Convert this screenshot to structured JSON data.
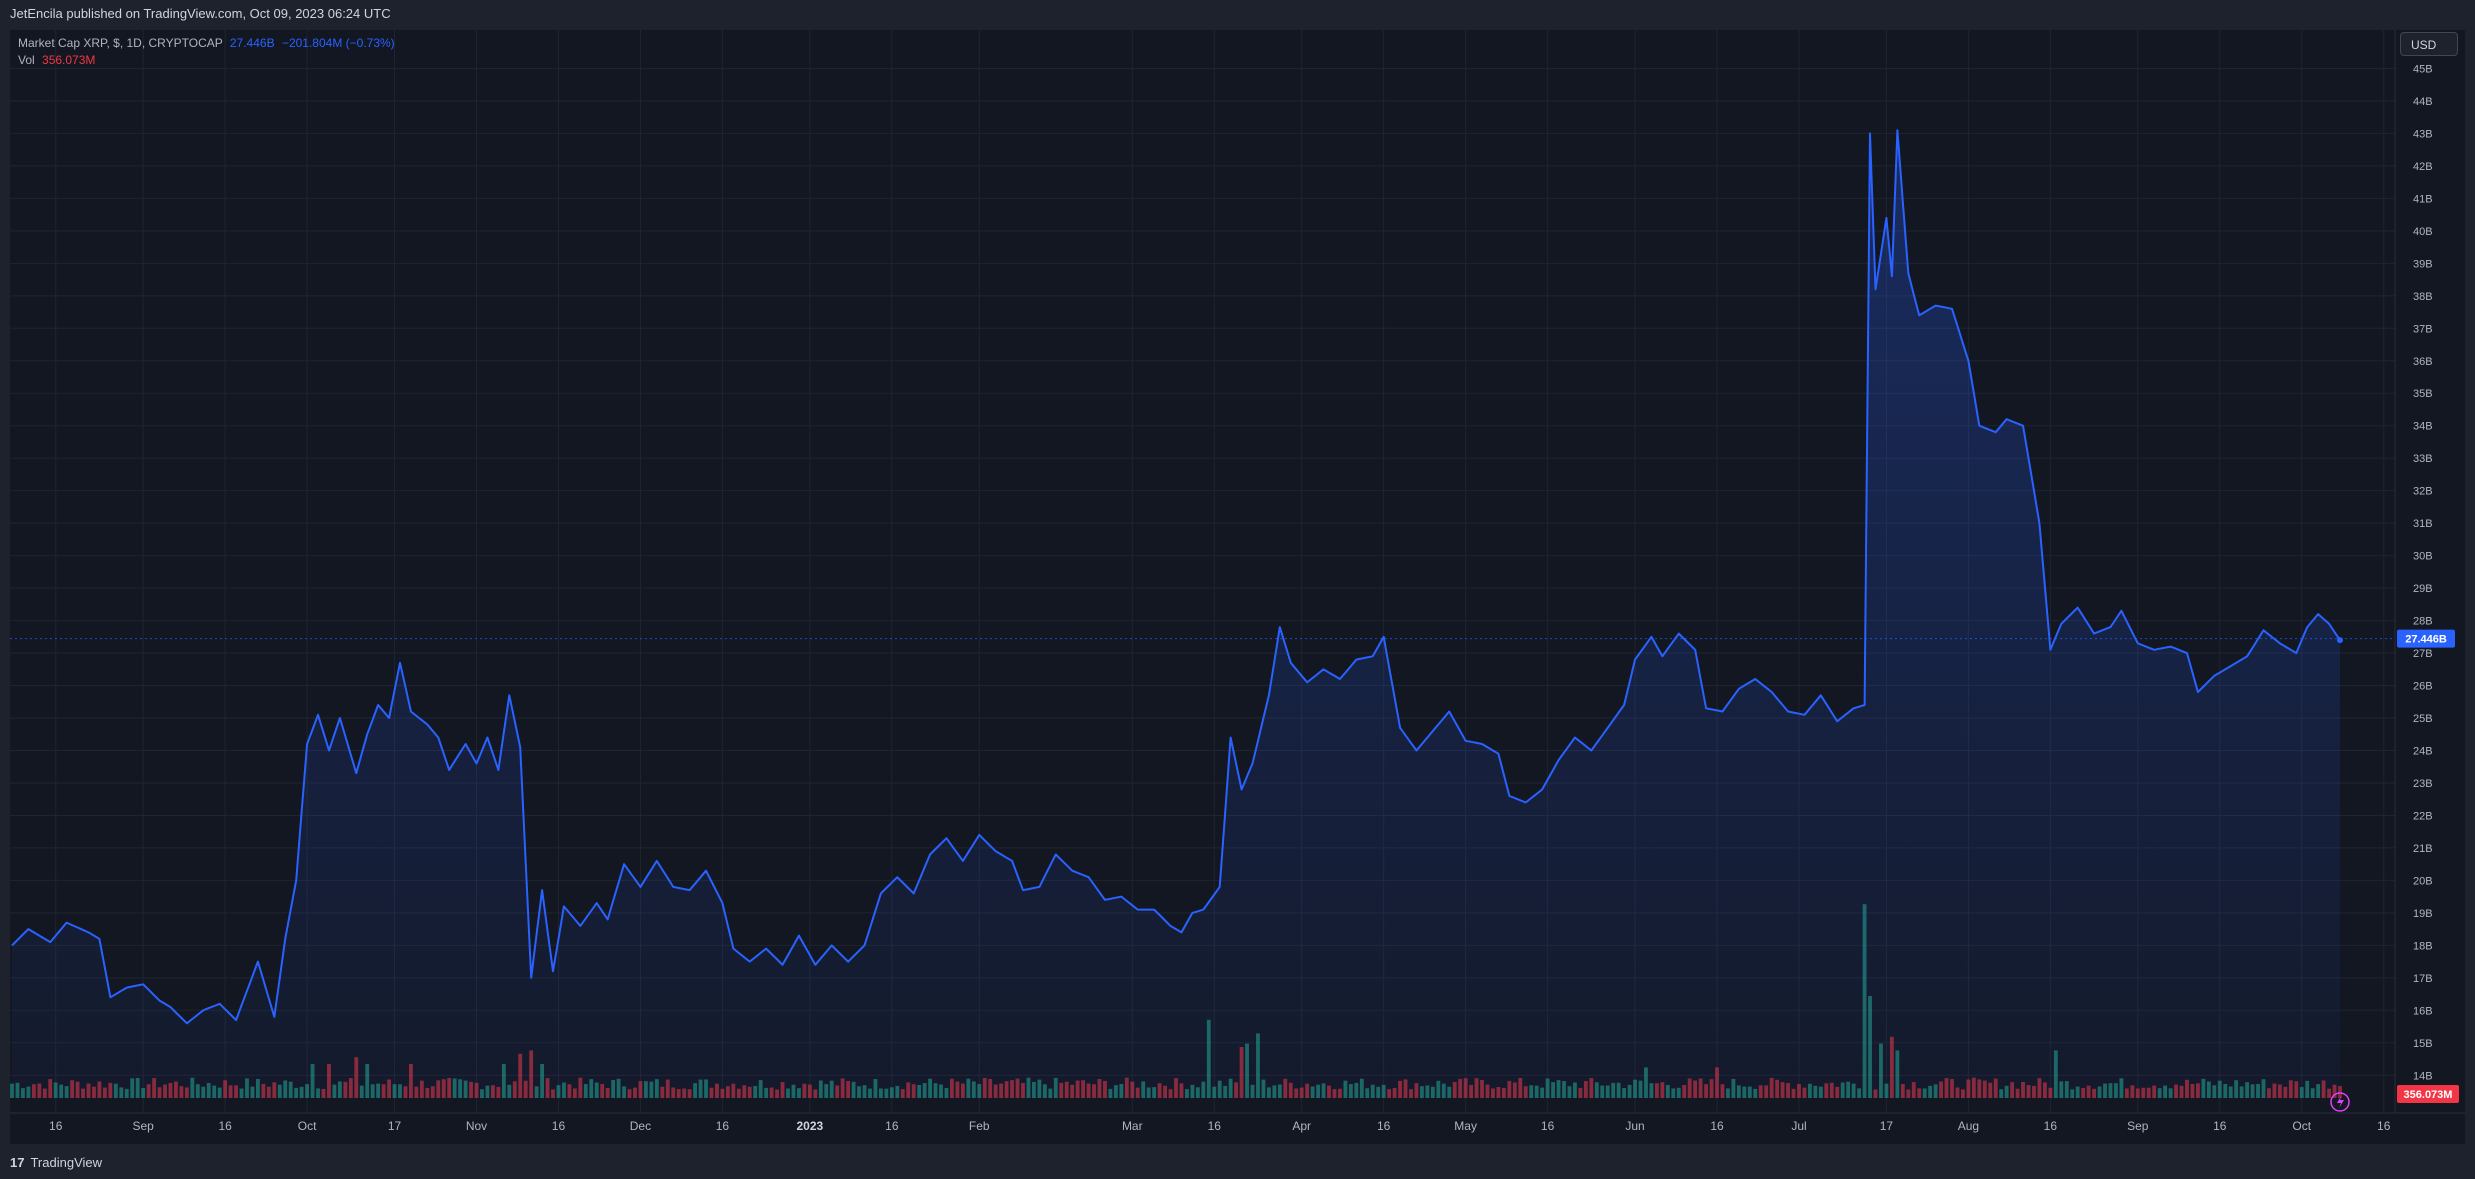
{
  "header": {
    "published": "JetEncila published on TradingView.com, Oct 09, 2023 06:24 UTC"
  },
  "legend": {
    "symbol": "Market Cap XRP, $, 1D, CRYPTOCAP",
    "last": "27.446B",
    "change": "−201.804M (−0.73%)",
    "vol_label": "Vol",
    "vol_value": "356.073M"
  },
  "currency_button": "USD",
  "footer": {
    "brand": "TradingView",
    "logo_glyph": "17"
  },
  "colors": {
    "line": "#2962ff",
    "volume_up": "#22ab94",
    "volume_down": "#f23645",
    "background": "#131722",
    "grid": "#1f2431"
  },
  "chart_data": {
    "type": "area",
    "title": "Market Cap XRP",
    "y_unit": "USD (billions)",
    "ylim": [
      13.3,
      46.0
    ],
    "y_ticks": [
      "14B",
      "15B",
      "16B",
      "17B",
      "18B",
      "19B",
      "20B",
      "21B",
      "22B",
      "23B",
      "24B",
      "25B",
      "26B",
      "27B",
      "28B",
      "29B",
      "30B",
      "31B",
      "32B",
      "33B",
      "34B",
      "35B",
      "36B",
      "37B",
      "38B",
      "39B",
      "40B",
      "41B",
      "42B",
      "43B",
      "44B",
      "45B"
    ],
    "x_ticks": [
      "16",
      "Sep",
      "16",
      "Oct",
      "17",
      "Nov",
      "16",
      "Dec",
      "16",
      "2023",
      "16",
      "Feb",
      "Mar",
      "16",
      "Apr",
      "16",
      "May",
      "16",
      "Jun",
      "16",
      "Jul",
      "17",
      "Aug",
      "16",
      "Sep",
      "16",
      "Oct",
      "16"
    ],
    "grid": true,
    "last_value_label": "27.446B",
    "volume_last_label": "356.073M",
    "price_keypoints": [
      [
        "2022-08-08",
        18.0
      ],
      [
        "2022-08-11",
        18.5
      ],
      [
        "2022-08-15",
        18.1
      ],
      [
        "2022-08-18",
        18.7
      ],
      [
        "2022-08-22",
        18.4
      ],
      [
        "2022-08-24",
        18.2
      ],
      [
        "2022-08-26",
        16.4
      ],
      [
        "2022-08-29",
        16.7
      ],
      [
        "2022-09-01",
        16.8
      ],
      [
        "2022-09-04",
        16.3
      ],
      [
        "2022-09-06",
        16.1
      ],
      [
        "2022-09-09",
        15.6
      ],
      [
        "2022-09-12",
        16.0
      ],
      [
        "2022-09-15",
        16.2
      ],
      [
        "2022-09-18",
        15.7
      ],
      [
        "2022-09-20",
        16.6
      ],
      [
        "2022-09-22",
        17.5
      ],
      [
        "2022-09-25",
        15.8
      ],
      [
        "2022-09-27",
        18.2
      ],
      [
        "2022-09-29",
        20.0
      ],
      [
        "2022-10-01",
        24.2
      ],
      [
        "2022-10-03",
        25.1
      ],
      [
        "2022-10-05",
        24.0
      ],
      [
        "2022-10-07",
        25.0
      ],
      [
        "2022-10-10",
        23.3
      ],
      [
        "2022-10-12",
        24.5
      ],
      [
        "2022-10-14",
        25.4
      ],
      [
        "2022-10-16",
        25.0
      ],
      [
        "2022-10-18",
        26.7
      ],
      [
        "2022-10-20",
        25.2
      ],
      [
        "2022-10-23",
        24.8
      ],
      [
        "2022-10-25",
        24.4
      ],
      [
        "2022-10-27",
        23.4
      ],
      [
        "2022-10-30",
        24.2
      ],
      [
        "2022-11-01",
        23.6
      ],
      [
        "2022-11-03",
        24.4
      ],
      [
        "2022-11-05",
        23.4
      ],
      [
        "2022-11-07",
        25.7
      ],
      [
        "2022-11-09",
        24.1
      ],
      [
        "2022-11-11",
        17.0
      ],
      [
        "2022-11-13",
        19.7
      ],
      [
        "2022-11-15",
        17.2
      ],
      [
        "2022-11-17",
        19.2
      ],
      [
        "2022-11-20",
        18.6
      ],
      [
        "2022-11-23",
        19.3
      ],
      [
        "2022-11-25",
        18.8
      ],
      [
        "2022-11-28",
        20.5
      ],
      [
        "2022-12-01",
        19.8
      ],
      [
        "2022-12-04",
        20.6
      ],
      [
        "2022-12-07",
        19.8
      ],
      [
        "2022-12-10",
        19.7
      ],
      [
        "2022-12-13",
        20.3
      ],
      [
        "2022-12-16",
        19.3
      ],
      [
        "2022-12-18",
        17.9
      ],
      [
        "2022-12-21",
        17.5
      ],
      [
        "2022-12-24",
        17.9
      ],
      [
        "2022-12-27",
        17.4
      ],
      [
        "2022-12-30",
        18.3
      ],
      [
        "2023-01-02",
        17.4
      ],
      [
        "2023-01-05",
        18.0
      ],
      [
        "2023-01-08",
        17.5
      ],
      [
        "2023-01-11",
        18.0
      ],
      [
        "2023-01-14",
        19.6
      ],
      [
        "2023-01-17",
        20.1
      ],
      [
        "2023-01-20",
        19.6
      ],
      [
        "2023-01-23",
        20.8
      ],
      [
        "2023-01-26",
        21.3
      ],
      [
        "2023-01-29",
        20.6
      ],
      [
        "2023-02-01",
        21.4
      ],
      [
        "2023-02-04",
        20.9
      ],
      [
        "2023-02-07",
        20.6
      ],
      [
        "2023-02-09",
        19.7
      ],
      [
        "2023-02-12",
        19.8
      ],
      [
        "2023-02-15",
        20.8
      ],
      [
        "2023-02-18",
        20.3
      ],
      [
        "2023-02-21",
        20.1
      ],
      [
        "2023-02-24",
        19.4
      ],
      [
        "2023-02-27",
        19.5
      ],
      [
        "2023-03-02",
        19.1
      ],
      [
        "2023-03-05",
        19.1
      ],
      [
        "2023-03-08",
        18.6
      ],
      [
        "2023-03-10",
        18.4
      ],
      [
        "2023-03-12",
        19.0
      ],
      [
        "2023-03-14",
        19.1
      ],
      [
        "2023-03-17",
        19.8
      ],
      [
        "2023-03-19",
        24.4
      ],
      [
        "2023-03-21",
        22.8
      ],
      [
        "2023-03-23",
        23.6
      ],
      [
        "2023-03-26",
        25.7
      ],
      [
        "2023-03-28",
        27.8
      ],
      [
        "2023-03-30",
        26.7
      ],
      [
        "2023-04-02",
        26.1
      ],
      [
        "2023-04-05",
        26.5
      ],
      [
        "2023-04-08",
        26.2
      ],
      [
        "2023-04-11",
        26.8
      ],
      [
        "2023-04-14",
        26.9
      ],
      [
        "2023-04-16",
        27.5
      ],
      [
        "2023-04-19",
        24.7
      ],
      [
        "2023-04-22",
        24.0
      ],
      [
        "2023-04-25",
        24.6
      ],
      [
        "2023-04-28",
        25.2
      ],
      [
        "2023-05-01",
        24.3
      ],
      [
        "2023-05-04",
        24.2
      ],
      [
        "2023-05-07",
        23.9
      ],
      [
        "2023-05-09",
        22.6
      ],
      [
        "2023-05-12",
        22.4
      ],
      [
        "2023-05-15",
        22.8
      ],
      [
        "2023-05-18",
        23.7
      ],
      [
        "2023-05-21",
        24.4
      ],
      [
        "2023-05-24",
        24.0
      ],
      [
        "2023-05-27",
        24.7
      ],
      [
        "2023-05-30",
        25.4
      ],
      [
        "2023-06-01",
        26.8
      ],
      [
        "2023-06-04",
        27.5
      ],
      [
        "2023-06-06",
        26.9
      ],
      [
        "2023-06-09",
        27.6
      ],
      [
        "2023-06-12",
        27.1
      ],
      [
        "2023-06-14",
        25.3
      ],
      [
        "2023-06-17",
        25.2
      ],
      [
        "2023-06-20",
        25.9
      ],
      [
        "2023-06-23",
        26.2
      ],
      [
        "2023-06-26",
        25.8
      ],
      [
        "2023-06-29",
        25.2
      ],
      [
        "2023-07-02",
        25.1
      ],
      [
        "2023-07-05",
        25.7
      ],
      [
        "2023-07-08",
        24.9
      ],
      [
        "2023-07-11",
        25.3
      ],
      [
        "2023-07-13",
        25.4
      ],
      [
        "2023-07-14",
        43.0
      ],
      [
        "2023-07-15",
        38.2
      ],
      [
        "2023-07-17",
        40.4
      ],
      [
        "2023-07-18",
        38.6
      ],
      [
        "2023-07-19",
        43.1
      ],
      [
        "2023-07-21",
        38.7
      ],
      [
        "2023-07-23",
        37.4
      ],
      [
        "2023-07-26",
        37.7
      ],
      [
        "2023-07-29",
        37.6
      ],
      [
        "2023-08-01",
        36.0
      ],
      [
        "2023-08-03",
        34.0
      ],
      [
        "2023-08-06",
        33.8
      ],
      [
        "2023-08-08",
        34.2
      ],
      [
        "2023-08-11",
        34.0
      ],
      [
        "2023-08-14",
        31.0
      ],
      [
        "2023-08-16",
        27.1
      ],
      [
        "2023-08-18",
        27.9
      ],
      [
        "2023-08-21",
        28.4
      ],
      [
        "2023-08-24",
        27.6
      ],
      [
        "2023-08-27",
        27.8
      ],
      [
        "2023-08-29",
        28.3
      ],
      [
        "2023-09-01",
        27.3
      ],
      [
        "2023-09-04",
        27.1
      ],
      [
        "2023-09-07",
        27.2
      ],
      [
        "2023-09-10",
        27.0
      ],
      [
        "2023-09-12",
        25.8
      ],
      [
        "2023-09-15",
        26.3
      ],
      [
        "2023-09-18",
        26.6
      ],
      [
        "2023-09-21",
        26.9
      ],
      [
        "2023-09-24",
        27.7
      ],
      [
        "2023-09-27",
        27.3
      ],
      [
        "2023-09-30",
        27.0
      ],
      [
        "2023-10-02",
        27.8
      ],
      [
        "2023-10-04",
        28.2
      ],
      [
        "2023-10-06",
        27.9
      ],
      [
        "2023-10-08",
        27.4
      ]
    ],
    "volume_spikes": [
      [
        "2022-10-02",
        1.0
      ],
      [
        "2022-10-05",
        1.0
      ],
      [
        "2022-10-10",
        1.2
      ],
      [
        "2022-10-12",
        1.0
      ],
      [
        "2022-10-20",
        1.0
      ],
      [
        "2022-11-06",
        1.0
      ],
      [
        "2022-11-09",
        1.3
      ],
      [
        "2022-11-11",
        1.4
      ],
      [
        "2022-11-13",
        1.0
      ],
      [
        "2023-03-15",
        2.3
      ],
      [
        "2023-03-21",
        1.5
      ],
      [
        "2023-03-22",
        1.6
      ],
      [
        "2023-03-24",
        1.9
      ],
      [
        "2023-06-03",
        0.9
      ],
      [
        "2023-06-16",
        0.9
      ],
      [
        "2023-07-13",
        5.7
      ],
      [
        "2023-07-14",
        3.0
      ],
      [
        "2023-07-16",
        1.6
      ],
      [
        "2023-07-18",
        1.8
      ],
      [
        "2023-07-19",
        1.4
      ],
      [
        "2023-08-17",
        1.4
      ]
    ]
  }
}
